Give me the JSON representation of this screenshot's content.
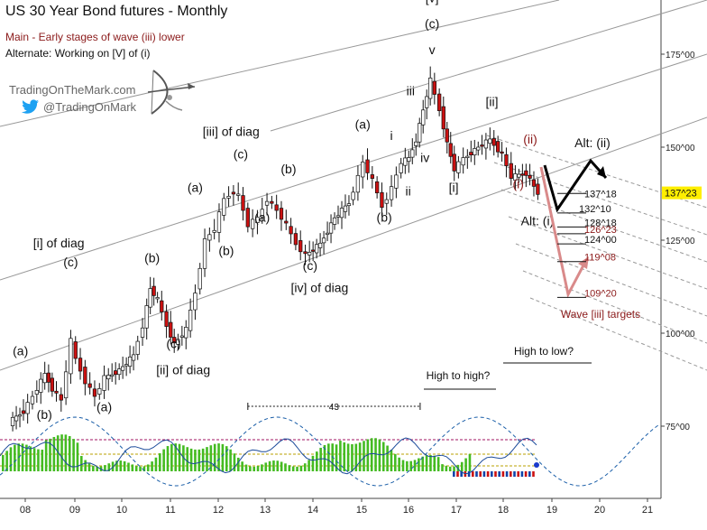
{
  "header": {
    "title": "US 30 Year Bond futures - Monthly",
    "main_note": "Main - Early stages of wave (iii) lower",
    "alt_note": "Alternate: Working on [V] of (i)"
  },
  "branding": {
    "site": "TradingOnTheMark.com",
    "handle": "@TradingOnMark",
    "twitter_icon": "twitter-bird-icon",
    "logo_icon": "archer-bow-icon"
  },
  "colors": {
    "up_bar": "#111111",
    "down_bar": "#cc1111",
    "wave_red": "#8b1a1a",
    "alt_arrow": "#000000",
    "main_arrow": "#d98a8a",
    "price_badge": "#ffee00",
    "channel": "#888888",
    "osc_green": "#44bb22",
    "cycle": "#1a5ea8"
  },
  "chart_data": {
    "type": "candlestick",
    "xlabel": "",
    "ylabel": "",
    "x_ticks": [
      "08",
      "09",
      "10",
      "11",
      "12",
      "13",
      "14",
      "15",
      "16",
      "17",
      "18",
      "19",
      "20",
      "21"
    ],
    "y_ticks": [
      "175^00",
      "150^00",
      "125^00",
      "100^00",
      "75^00"
    ],
    "ylim": [
      60,
      190
    ],
    "xlim": [
      2007.6,
      2021.2
    ],
    "current_price": "137^23",
    "price_path": [
      [
        2007.7,
        76
      ],
      [
        2008.0,
        79
      ],
      [
        2008.2,
        83
      ],
      [
        2008.45,
        89
      ],
      [
        2008.6,
        85
      ],
      [
        2008.8,
        82
      ],
      [
        2009.0,
        98
      ],
      [
        2009.1,
        93
      ],
      [
        2009.3,
        87
      ],
      [
        2009.5,
        83
      ],
      [
        2009.7,
        88
      ],
      [
        2010.0,
        90
      ],
      [
        2010.3,
        94
      ],
      [
        2010.5,
        102
      ],
      [
        2010.65,
        112
      ],
      [
        2010.8,
        109
      ],
      [
        2011.0,
        102
      ],
      [
        2011.15,
        97
      ],
      [
        2011.4,
        101
      ],
      [
        2011.6,
        111
      ],
      [
        2011.8,
        125
      ],
      [
        2012.0,
        128
      ],
      [
        2012.2,
        136
      ],
      [
        2012.4,
        138
      ],
      [
        2012.5,
        137
      ],
      [
        2012.7,
        129
      ],
      [
        2012.9,
        131
      ],
      [
        2013.1,
        136
      ],
      [
        2013.3,
        133
      ],
      [
        2013.5,
        129
      ],
      [
        2013.7,
        124
      ],
      [
        2013.9,
        121
      ],
      [
        2014.2,
        124
      ],
      [
        2014.5,
        131
      ],
      [
        2014.8,
        135
      ],
      [
        2015.0,
        142
      ],
      [
        2015.1,
        146
      ],
      [
        2015.3,
        141
      ],
      [
        2015.5,
        134
      ],
      [
        2015.7,
        139
      ],
      [
        2015.9,
        146
      ],
      [
        2016.05,
        147
      ],
      [
        2016.2,
        152
      ],
      [
        2016.35,
        160
      ],
      [
        2016.5,
        168
      ],
      [
        2016.7,
        160
      ],
      [
        2016.85,
        151
      ],
      [
        2017.0,
        144
      ],
      [
        2017.2,
        147
      ],
      [
        2017.5,
        150
      ],
      [
        2017.75,
        152
      ],
      [
        2018.0,
        148
      ],
      [
        2018.2,
        142
      ],
      [
        2018.5,
        143
      ],
      [
        2018.75,
        137.7
      ]
    ],
    "wave_labels": [
      {
        "text": "(a)",
        "x": 2007.9,
        "y": 94
      },
      {
        "text": "(b)",
        "x": 2008.4,
        "y": 77
      },
      {
        "text": "[i] of diag",
        "x": 2008.7,
        "y": 123
      },
      {
        "text": "(c)",
        "x": 2008.95,
        "y": 118
      },
      {
        "text": "(a)",
        "x": 2009.65,
        "y": 79
      },
      {
        "text": "(b)",
        "x": 2010.65,
        "y": 119
      },
      {
        "text": "(c)",
        "x": 2011.1,
        "y": 96
      },
      {
        "text": "[ii] of diag",
        "x": 2011.3,
        "y": 89
      },
      {
        "text": "(a)",
        "x": 2011.55,
        "y": 138
      },
      {
        "text": "[iii] of diag",
        "x": 2012.3,
        "y": 153
      },
      {
        "text": "(c)",
        "x": 2012.5,
        "y": 147
      },
      {
        "text": "(a)",
        "x": 2012.95,
        "y": 130
      },
      {
        "text": "(b)",
        "x": 2012.2,
        "y": 121
      },
      {
        "text": "(b)",
        "x": 2013.5,
        "y": 143
      },
      {
        "text": "(c)",
        "x": 2013.95,
        "y": 117
      },
      {
        "text": "[iv] of diag",
        "x": 2014.15,
        "y": 111
      },
      {
        "text": "(a)",
        "x": 2015.05,
        "y": 155
      },
      {
        "text": "i",
        "x": 2015.65,
        "y": 152
      },
      {
        "text": "(b)",
        "x": 2015.5,
        "y": 130
      },
      {
        "text": "ii",
        "x": 2016.0,
        "y": 137
      },
      {
        "text": "iii",
        "x": 2016.05,
        "y": 164
      },
      {
        "text": "iv",
        "x": 2016.35,
        "y": 146
      },
      {
        "text": "[v]",
        "x": 2016.5,
        "y": 189
      },
      {
        "text": "(c)",
        "x": 2016.5,
        "y": 182
      },
      {
        "text": "v",
        "x": 2016.5,
        "y": 175
      },
      {
        "text": "[i]",
        "x": 2016.95,
        "y": 138
      },
      {
        "text": "[ii]",
        "x": 2017.75,
        "y": 161
      },
      {
        "text": "(ii)",
        "x": 2018.55,
        "y": 151,
        "color": "wave_red"
      },
      {
        "text": "(i)",
        "x": 2018.3,
        "y": 139,
        "color": "wave_red"
      },
      {
        "text": "Alt: (ii)",
        "x": 2019.85,
        "y": 150
      },
      {
        "text": "Alt: (i)",
        "x": 2018.7,
        "y": 129
      }
    ],
    "target_levels": [
      {
        "label": "137^18",
        "value": 137.56,
        "color": "#111111"
      },
      {
        "label": "132^10",
        "value": 132.31,
        "color": "#111111"
      },
      {
        "label": "128^18",
        "value": 128.56,
        "color": "#111111"
      },
      {
        "label": "126^23",
        "value": 126.72,
        "color": "wave_red"
      },
      {
        "label": "124^00",
        "value": 124.0,
        "color": "#111111"
      },
      {
        "label": "119^08",
        "value": 119.25,
        "color": "wave_red"
      },
      {
        "label": "109^20",
        "value": 109.63,
        "color": "wave_red"
      }
    ],
    "targets_caption": "Wave [iii] targets",
    "cycle_note": "43",
    "cycle_range": [
      2012.65,
      2016.25
    ],
    "high_to_high": "High to high?",
    "high_to_low": "High to low?"
  }
}
